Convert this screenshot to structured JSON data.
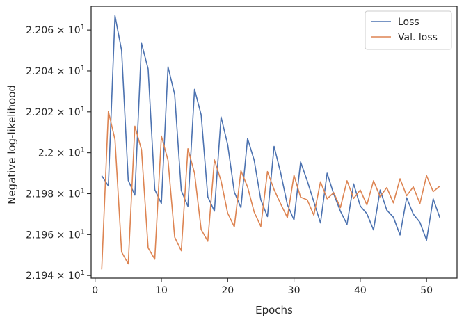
{
  "chart_data": {
    "type": "line",
    "xlabel": "Epochs",
    "ylabel": "Negative log-likelihood",
    "xlim": [
      -0.6,
      54.6
    ],
    "ylim": [
      21.9387,
      22.0716
    ],
    "xticks": [
      0,
      10,
      20,
      30,
      40,
      50
    ],
    "yticks": [
      {
        "value": 21.94,
        "mantissa": "2.194",
        "base": "10",
        "exp": "1"
      },
      {
        "value": 21.96,
        "mantissa": "2.196",
        "base": "10",
        "exp": "1"
      },
      {
        "value": 21.98,
        "mantissa": "2.198",
        "base": "10",
        "exp": "1"
      },
      {
        "value": 22.0,
        "mantissa": "2.2",
        "base": "10",
        "exp": "1"
      },
      {
        "value": 22.02,
        "mantissa": "2.202",
        "base": "10",
        "exp": "1"
      },
      {
        "value": 22.04,
        "mantissa": "2.204",
        "base": "10",
        "exp": "1"
      },
      {
        "value": 22.06,
        "mantissa": "2.206",
        "base": "10",
        "exp": "1"
      }
    ],
    "times_sign": "×",
    "grid": false,
    "legend_position": "top-right",
    "x": [
      1,
      2,
      3,
      4,
      5,
      6,
      7,
      8,
      9,
      10,
      11,
      12,
      13,
      14,
      15,
      16,
      17,
      18,
      19,
      20,
      21,
      22,
      23,
      24,
      25,
      26,
      27,
      28,
      29,
      30,
      31,
      32,
      33,
      34,
      35,
      36,
      37,
      38,
      39,
      40,
      41,
      42,
      43,
      44,
      45,
      46,
      47,
      48,
      49,
      50,
      51,
      52
    ],
    "series": [
      {
        "name": "Loss",
        "color": "#4c72b0",
        "values": [
          21.9888,
          21.9838,
          22.067,
          22.05,
          21.9865,
          21.9793,
          22.0535,
          22.041,
          21.982,
          21.9752,
          22.042,
          22.0285,
          21.9815,
          21.9738,
          22.031,
          22.0185,
          21.9785,
          21.9715,
          22.0175,
          22.004,
          21.9808,
          21.9732,
          22.007,
          21.9963,
          21.977,
          21.9688,
          22.0031,
          21.9901,
          21.9747,
          21.9672,
          21.9955,
          21.9863,
          21.976,
          21.9657,
          21.99,
          21.9798,
          21.9715,
          21.965,
          21.9848,
          21.974,
          21.9702,
          21.9623,
          21.9818,
          21.972,
          21.9685,
          21.9598,
          21.978,
          21.97,
          21.966,
          21.9573,
          21.9775,
          21.9683
        ]
      },
      {
        "name": "Val. loss",
        "color": "#dd8452",
        "values": [
          21.943,
          22.0202,
          22.0065,
          21.9515,
          21.9457,
          22.013,
          22.0015,
          21.9535,
          21.948,
          22.0082,
          21.9963,
          21.9588,
          21.9521,
          22.002,
          21.99,
          21.9625,
          21.9568,
          21.9965,
          21.9863,
          21.9705,
          21.9638,
          21.9912,
          21.9833,
          21.971,
          21.964,
          21.9908,
          21.982,
          21.975,
          21.9683,
          21.989,
          21.9783,
          21.977,
          21.9695,
          21.9858,
          21.9775,
          21.9805,
          21.9732,
          21.9863,
          21.9777,
          21.9818,
          21.9745,
          21.9863,
          21.9785,
          21.983,
          21.9755,
          21.9873,
          21.979,
          21.9833,
          21.9752,
          21.9888,
          21.981,
          21.9837
        ]
      }
    ]
  }
}
